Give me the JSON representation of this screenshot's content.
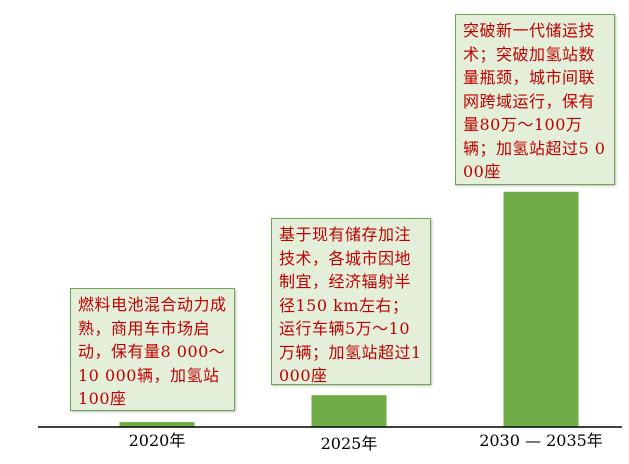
{
  "chart_data": {
    "type": "bar",
    "categories": [
      "2020年",
      "2025年",
      "2030 — 2035年"
    ],
    "values": [
      1,
      6.5,
      48
    ],
    "colors": {
      "bar": "#70ad47",
      "axis": "#000000",
      "annotation_text": "#c00000",
      "annotation_fill": "#e3efd9",
      "annotation_border": "#6fa552"
    },
    "annotations": [
      "燃料电池混合动力成熟，商用车市场启动，保有量8 000～10 000辆，加氢站100座",
      "基于现有储存加注技术，各城市因地制宜，经济辐射半径150 km左右；运行车辆5万～10万辆；加氢站超过1 000座",
      "突破新一代储运技术；突破加氢站数量瓶颈，城市间联网跨域运行，保有量80万～100万辆；加氢站超过5 000座"
    ]
  }
}
